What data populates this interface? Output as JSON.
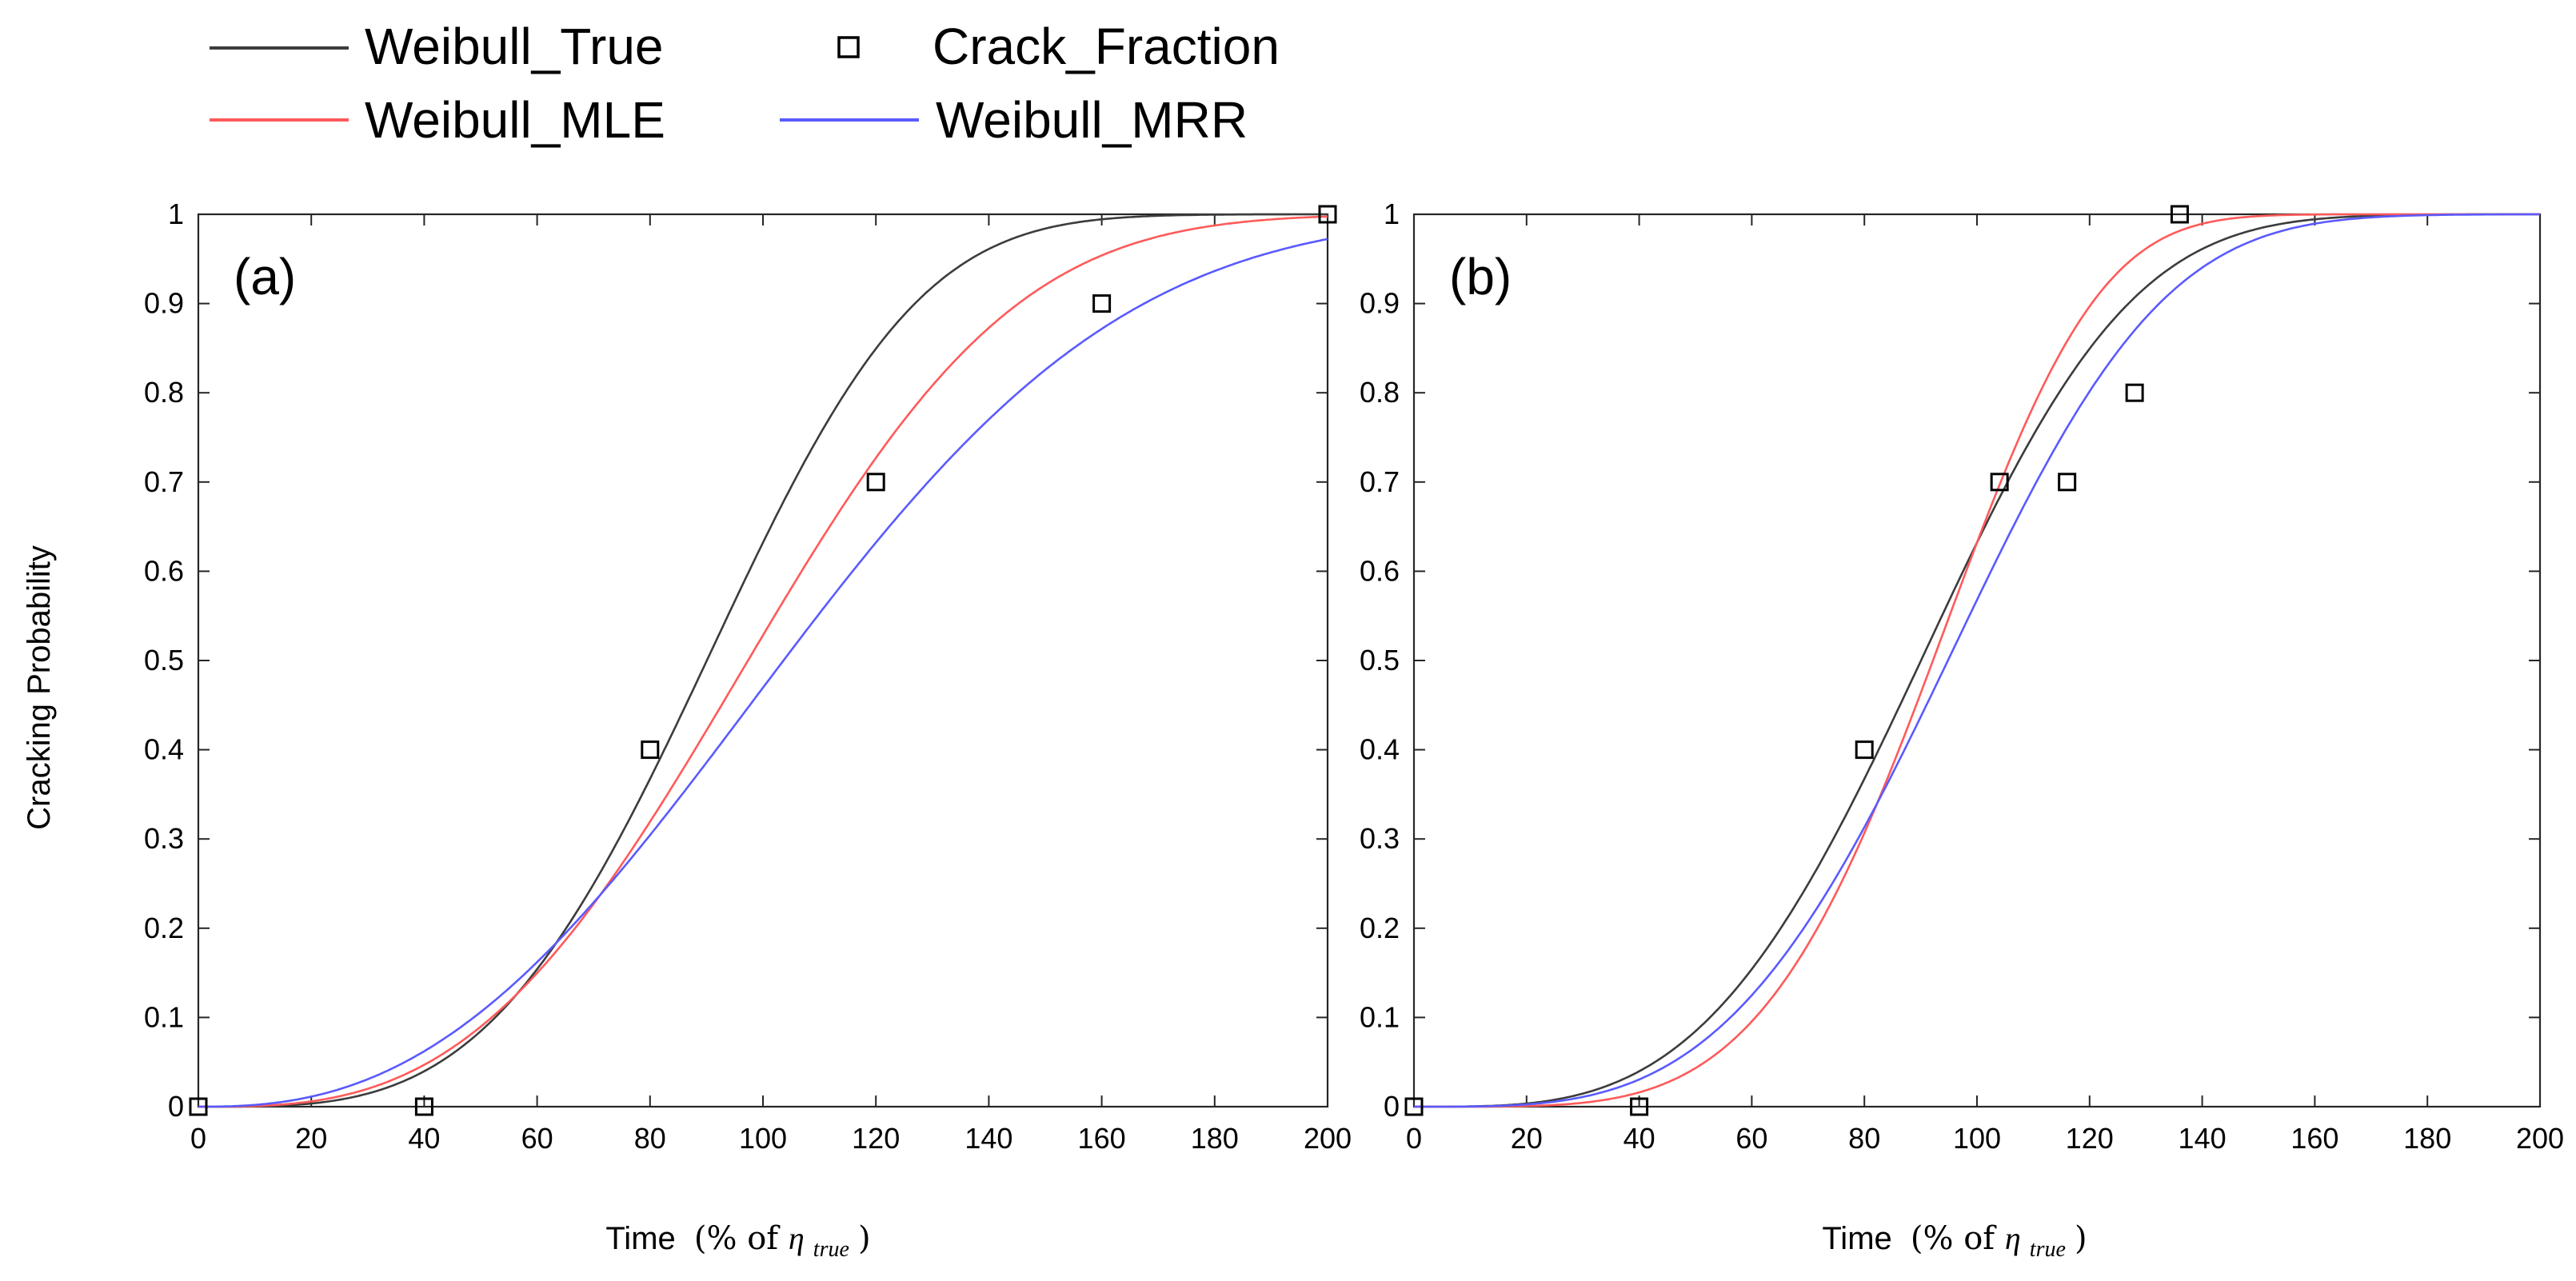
{
  "legend": {
    "entries": [
      {
        "label": "Weibull_True",
        "kind": "line",
        "color": "#3c3c3c"
      },
      {
        "label": "Crack_Fraction",
        "kind": "marker",
        "color": "#000000"
      },
      {
        "label": "Weibull_MLE",
        "kind": "line",
        "color": "#ff5a5a"
      },
      {
        "label": "Weibull_MRR",
        "kind": "line",
        "color": "#5a5aff"
      }
    ]
  },
  "ylabel": "Cracking Probability",
  "xlabel": {
    "prefix": "Time",
    "paren_open": "(% of ",
    "eta": "η",
    "eta_sub": "true",
    "paren_close": ")"
  },
  "chart_data": [
    {
      "type": "line",
      "panel_label": "(a)",
      "xlim": [
        0,
        200
      ],
      "ylim": [
        0,
        1
      ],
      "xticks": [
        "0",
        "20",
        "40",
        "60",
        "80",
        "100",
        "120",
        "140",
        "160",
        "180",
        "200"
      ],
      "yticks": [
        "0",
        "0.1",
        "0.2",
        "0.3",
        "0.4",
        "0.5",
        "0.6",
        "0.7",
        "0.8",
        "0.9",
        "1"
      ],
      "series": [
        {
          "name": "Weibull_True",
          "color": "#3c3c3c",
          "eta": 100,
          "beta": 3.5
        },
        {
          "name": "Weibull_MLE",
          "color": "#ff5a5a",
          "eta": 110,
          "beta": 3.0
        },
        {
          "name": "Weibull_MRR",
          "color": "#5a5aff",
          "eta": 120,
          "beta": 2.5
        }
      ],
      "scatter": {
        "name": "Crack_Fraction",
        "x": [
          0,
          40,
          80,
          120,
          160,
          200
        ],
        "y": [
          0,
          0,
          0.4,
          0.7,
          0.9,
          1.0
        ]
      }
    },
    {
      "type": "line",
      "panel_label": "(b)",
      "xlim": [
        0,
        200
      ],
      "ylim": [
        0,
        1
      ],
      "xticks": [
        "0",
        "20",
        "40",
        "60",
        "80",
        "100",
        "120",
        "140",
        "160",
        "180",
        "200"
      ],
      "yticks": [
        "0",
        "0.1",
        "0.2",
        "0.3",
        "0.4",
        "0.5",
        "0.6",
        "0.7",
        "0.8",
        "0.9",
        "1"
      ],
      "series": [
        {
          "name": "Weibull_True",
          "color": "#3c3c3c",
          "eta": 100,
          "beta": 3.5
        },
        {
          "name": "Weibull_MLE",
          "color": "#ff5a5a",
          "eta": 100,
          "beta": 4.5
        },
        {
          "name": "Weibull_MRR",
          "color": "#5a5aff",
          "eta": 105,
          "beta": 3.6
        }
      ],
      "scatter": {
        "name": "Crack_Fraction",
        "x": [
          0,
          40,
          80,
          104,
          116,
          128,
          136
        ],
        "y": [
          0,
          0,
          0.4,
          0.7,
          0.7,
          0.8,
          1.0
        ]
      }
    }
  ]
}
